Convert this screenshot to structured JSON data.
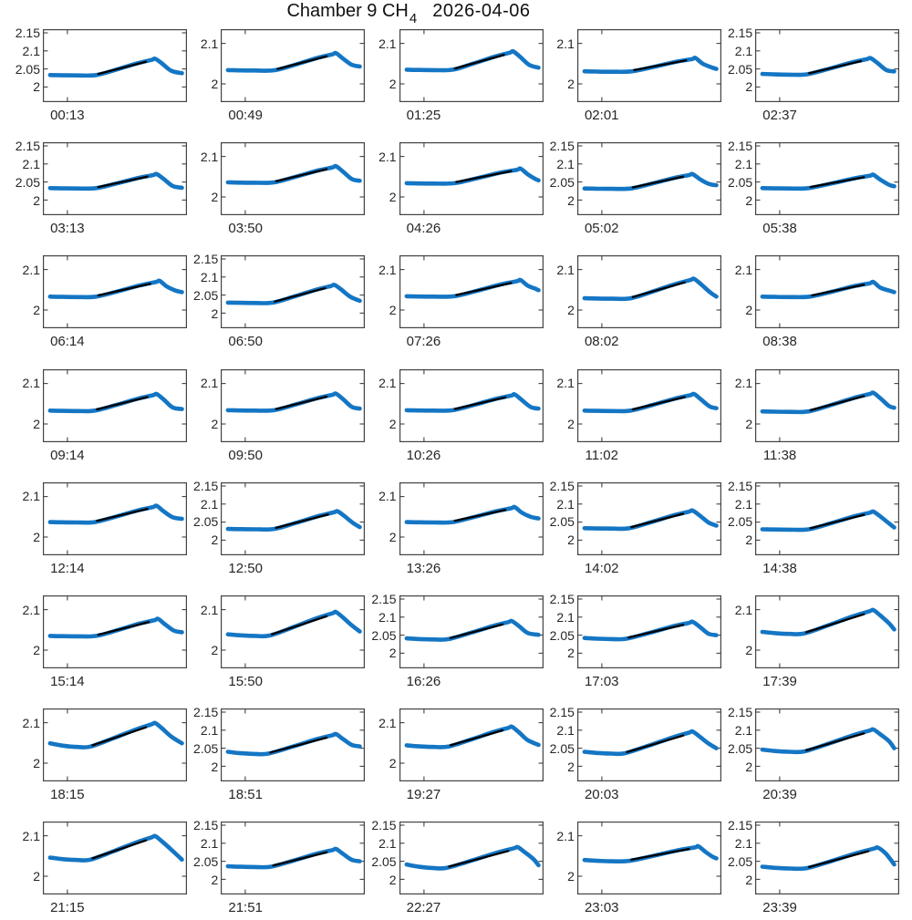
{
  "title": {
    "prefix": "Chamber 9 CH",
    "subscript": "4",
    "date": "2026-04-06"
  },
  "colors": {
    "curve": "#1476C4",
    "fit_line": "#000000",
    "axis": "#434343",
    "text": "#262626",
    "background": "#ffffff"
  },
  "chart_data": {
    "type": "line",
    "title": "Chamber 9 CH4 2026-04-06",
    "grid": {
      "rows": 8,
      "cols": 5
    },
    "legend": "none",
    "gridlines": false,
    "overlay": "black linear-fit segment drawn over rising limb of each panel",
    "x_axis": "one tick per panel at ~17% width, labeled with panel start time",
    "ytick_presets": {
      "f": [
        {
          "v": 2.15,
          "label": "2.15"
        },
        {
          "v": 2.1,
          "label": "2.1"
        },
        {
          "v": 2.05,
          "label": "2.05"
        },
        {
          "v": 2,
          "label": "2"
        }
      ],
      "s": [
        {
          "v": 2.1,
          "label": "2.1"
        },
        {
          "v": 2,
          "label": "2"
        }
      ]
    },
    "ylim_presets": {
      "f": [
        1.958,
        2.16
      ],
      "s": [
        1.955,
        2.135
      ]
    },
    "xtick_frac": 0.17,
    "subplots": [
      {
        "time": "00:13",
        "yticks": "f",
        "start": 2.033,
        "baseline": 2.032,
        "rise_start_frac": 0.37,
        "peak_x_frac": 0.78,
        "peak": 2.078,
        "end": 2.038
      },
      {
        "time": "00:49",
        "yticks": "s",
        "start": 2.034,
        "baseline": 2.033,
        "rise_start_frac": 0.38,
        "peak_x_frac": 0.8,
        "peak": 2.076,
        "end": 2.043
      },
      {
        "time": "01:25",
        "yticks": "s",
        "start": 2.035,
        "baseline": 2.034,
        "rise_start_frac": 0.37,
        "peak_x_frac": 0.79,
        "peak": 2.08,
        "end": 2.04
      },
      {
        "time": "02:01",
        "yticks": "s",
        "start": 2.031,
        "baseline": 2.03,
        "rise_start_frac": 0.38,
        "peak_x_frac": 0.82,
        "peak": 2.064,
        "end": 2.037
      },
      {
        "time": "02:37",
        "yticks": "f",
        "start": 2.036,
        "baseline": 2.034,
        "rise_start_frac": 0.36,
        "peak_x_frac": 0.8,
        "peak": 2.08,
        "end": 2.043
      },
      {
        "time": "03:13",
        "yticks": "f",
        "start": 2.033,
        "baseline": 2.032,
        "rise_start_frac": 0.37,
        "peak_x_frac": 0.79,
        "peak": 2.072,
        "end": 2.034
      },
      {
        "time": "03:50",
        "yticks": "s",
        "start": 2.036,
        "baseline": 2.035,
        "rise_start_frac": 0.37,
        "peak_x_frac": 0.8,
        "peak": 2.076,
        "end": 2.04
      },
      {
        "time": "04:26",
        "yticks": "s",
        "start": 2.034,
        "baseline": 2.033,
        "rise_start_frac": 0.38,
        "peak_x_frac": 0.84,
        "peak": 2.07,
        "end": 2.041
      },
      {
        "time": "05:02",
        "yticks": "f",
        "start": 2.032,
        "baseline": 2.031,
        "rise_start_frac": 0.37,
        "peak_x_frac": 0.8,
        "peak": 2.072,
        "end": 2.041
      },
      {
        "time": "05:38",
        "yticks": "f",
        "start": 2.033,
        "baseline": 2.032,
        "rise_start_frac": 0.37,
        "peak_x_frac": 0.82,
        "peak": 2.07,
        "end": 2.038
      },
      {
        "time": "06:14",
        "yticks": "s",
        "start": 2.033,
        "baseline": 2.032,
        "rise_start_frac": 0.37,
        "peak_x_frac": 0.81,
        "peak": 2.072,
        "end": 2.044
      },
      {
        "time": "06:50",
        "yticks": "f",
        "start": 2.029,
        "baseline": 2.028,
        "rise_start_frac": 0.36,
        "peak_x_frac": 0.79,
        "peak": 2.078,
        "end": 2.034
      },
      {
        "time": "07:26",
        "yticks": "s",
        "start": 2.034,
        "baseline": 2.033,
        "rise_start_frac": 0.38,
        "peak_x_frac": 0.84,
        "peak": 2.074,
        "end": 2.049
      },
      {
        "time": "08:02",
        "yticks": "s",
        "start": 2.029,
        "baseline": 2.028,
        "rise_start_frac": 0.37,
        "peak_x_frac": 0.81,
        "peak": 2.077,
        "end": 2.033
      },
      {
        "time": "08:38",
        "yticks": "s",
        "start": 2.033,
        "baseline": 2.032,
        "rise_start_frac": 0.38,
        "peak_x_frac": 0.82,
        "peak": 2.069,
        "end": 2.044
      },
      {
        "time": "09:14",
        "yticks": "s",
        "start": 2.033,
        "baseline": 2.032,
        "rise_start_frac": 0.36,
        "peak_x_frac": 0.79,
        "peak": 2.074,
        "end": 2.037
      },
      {
        "time": "09:50",
        "yticks": "s",
        "start": 2.034,
        "baseline": 2.033,
        "rise_start_frac": 0.37,
        "peak_x_frac": 0.8,
        "peak": 2.075,
        "end": 2.038
      },
      {
        "time": "10:26",
        "yticks": "s",
        "start": 2.034,
        "baseline": 2.033,
        "rise_start_frac": 0.37,
        "peak_x_frac": 0.8,
        "peak": 2.073,
        "end": 2.038
      },
      {
        "time": "11:02",
        "yticks": "s",
        "start": 2.033,
        "baseline": 2.032,
        "rise_start_frac": 0.37,
        "peak_x_frac": 0.81,
        "peak": 2.074,
        "end": 2.039
      },
      {
        "time": "11:38",
        "yticks": "s",
        "start": 2.031,
        "baseline": 2.03,
        "rise_start_frac": 0.37,
        "peak_x_frac": 0.82,
        "peak": 2.077,
        "end": 2.04
      },
      {
        "time": "12:14",
        "yticks": "s",
        "start": 2.037,
        "baseline": 2.036,
        "rise_start_frac": 0.36,
        "peak_x_frac": 0.79,
        "peak": 2.077,
        "end": 2.045
      },
      {
        "time": "12:50",
        "yticks": "f",
        "start": 2.031,
        "baseline": 2.03,
        "rise_start_frac": 0.37,
        "peak_x_frac": 0.81,
        "peak": 2.08,
        "end": 2.036
      },
      {
        "time": "13:26",
        "yticks": "s",
        "start": 2.037,
        "baseline": 2.036,
        "rise_start_frac": 0.37,
        "peak_x_frac": 0.8,
        "peak": 2.074,
        "end": 2.046
      },
      {
        "time": "14:02",
        "yticks": "f",
        "start": 2.033,
        "baseline": 2.032,
        "rise_start_frac": 0.36,
        "peak_x_frac": 0.8,
        "peak": 2.082,
        "end": 2.04
      },
      {
        "time": "14:38",
        "yticks": "f",
        "start": 2.03,
        "baseline": 2.029,
        "rise_start_frac": 0.37,
        "peak_x_frac": 0.82,
        "peak": 2.079,
        "end": 2.035
      },
      {
        "time": "15:14",
        "yticks": "s",
        "start": 2.035,
        "baseline": 2.034,
        "rise_start_frac": 0.37,
        "peak_x_frac": 0.8,
        "peak": 2.077,
        "end": 2.044
      },
      {
        "time": "15:50",
        "yticks": "s",
        "start": 2.039,
        "baseline": 2.035,
        "rise_start_frac": 0.34,
        "peak_x_frac": 0.8,
        "peak": 2.094,
        "end": 2.046
      },
      {
        "time": "16:26",
        "yticks": "f",
        "start": 2.041,
        "baseline": 2.038,
        "rise_start_frac": 0.34,
        "peak_x_frac": 0.78,
        "peak": 2.089,
        "end": 2.051
      },
      {
        "time": "17:03",
        "yticks": "f",
        "start": 2.042,
        "baseline": 2.039,
        "rise_start_frac": 0.34,
        "peak_x_frac": 0.8,
        "peak": 2.087,
        "end": 2.05
      },
      {
        "time": "17:39",
        "yticks": "s",
        "start": 2.045,
        "baseline": 2.04,
        "rise_start_frac": 0.34,
        "peak_x_frac": 0.82,
        "peak": 2.099,
        "end": 2.051
      },
      {
        "time": "18:15",
        "yticks": "s",
        "start": 2.049,
        "baseline": 2.04,
        "rise_start_frac": 0.33,
        "peak_x_frac": 0.78,
        "peak": 2.099,
        "end": 2.049
      },
      {
        "time": "18:51",
        "yticks": "f",
        "start": 2.04,
        "baseline": 2.034,
        "rise_start_frac": 0.33,
        "peak_x_frac": 0.8,
        "peak": 2.089,
        "end": 2.055
      },
      {
        "time": "19:27",
        "yticks": "s",
        "start": 2.044,
        "baseline": 2.04,
        "rise_start_frac": 0.34,
        "peak_x_frac": 0.78,
        "peak": 2.09,
        "end": 2.045
      },
      {
        "time": "20:03",
        "yticks": "f",
        "start": 2.04,
        "baseline": 2.035,
        "rise_start_frac": 0.33,
        "peak_x_frac": 0.8,
        "peak": 2.096,
        "end": 2.05
      },
      {
        "time": "20:39",
        "yticks": "f",
        "start": 2.046,
        "baseline": 2.04,
        "rise_start_frac": 0.34,
        "peak_x_frac": 0.82,
        "peak": 2.102,
        "end": 2.05
      },
      {
        "time": "21:15",
        "yticks": "s",
        "start": 2.046,
        "baseline": 2.04,
        "rise_start_frac": 0.33,
        "peak_x_frac": 0.78,
        "peak": 2.099,
        "end": 2.041
      },
      {
        "time": "21:51",
        "yticks": "f",
        "start": 2.036,
        "baseline": 2.034,
        "rise_start_frac": 0.35,
        "peak_x_frac": 0.8,
        "peak": 2.084,
        "end": 2.05
      },
      {
        "time": "22:27",
        "yticks": "f",
        "start": 2.041,
        "baseline": 2.031,
        "rise_start_frac": 0.33,
        "peak_x_frac": 0.82,
        "peak": 2.089,
        "end": 2.039
      },
      {
        "time": "23:03",
        "yticks": "s",
        "start": 2.04,
        "baseline": 2.037,
        "rise_start_frac": 0.36,
        "peak_x_frac": 0.84,
        "peak": 2.074,
        "end": 2.044
      },
      {
        "time": "23:39",
        "yticks": "f",
        "start": 2.035,
        "baseline": 2.03,
        "rise_start_frac": 0.36,
        "peak_x_frac": 0.85,
        "peak": 2.088,
        "end": 2.041
      }
    ]
  }
}
